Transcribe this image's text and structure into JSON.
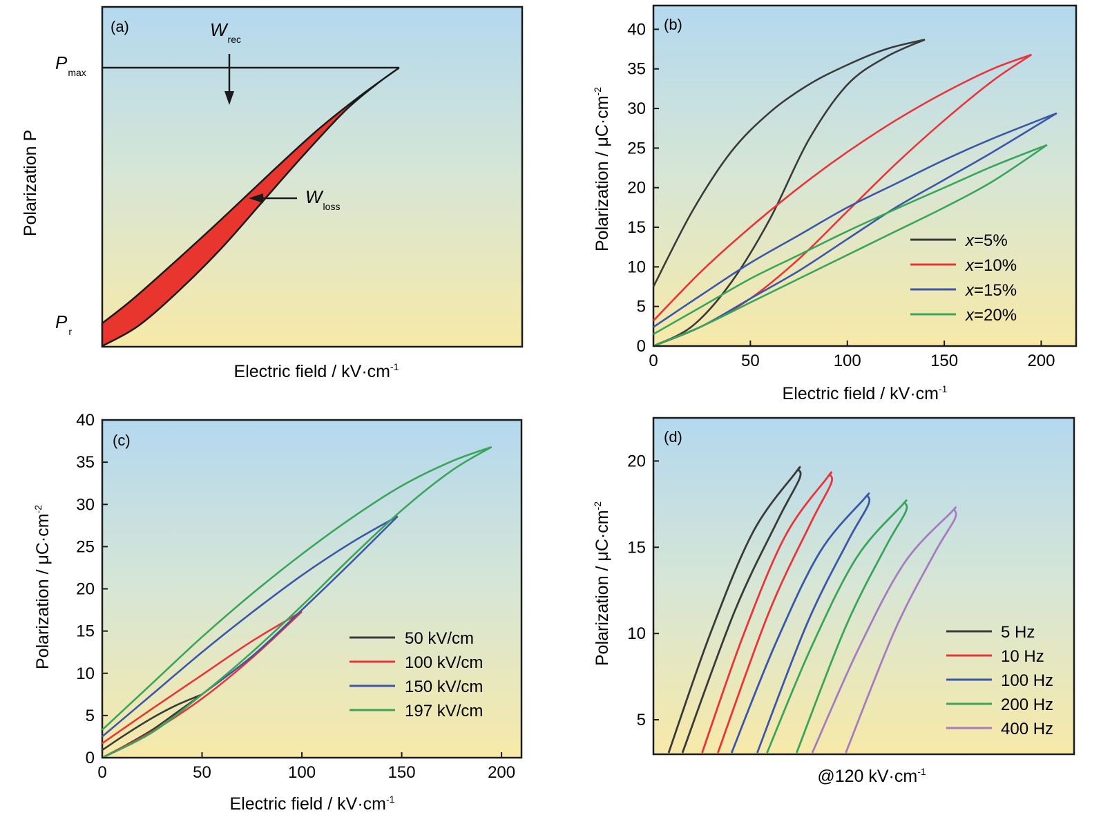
{
  "chart_data": [
    {
      "panel": "(a)",
      "type": "line",
      "xlabel": "Electric field / kV·cm",
      "xlabel_sup": "-1",
      "ylabel": "Polarization P",
      "labels": {
        "pmax_main": "P",
        "pmax_sub": "max",
        "pr_main": "P",
        "pr_sub": "r",
        "wrec_main": "W",
        "wrec_sub": "rec",
        "wloss_main": "W",
        "wloss_sub": "loss"
      },
      "colors": {
        "loss_fill": "#e8362e",
        "outline": "#1a1a1a"
      }
    },
    {
      "panel": "(b)",
      "type": "line",
      "xlabel": "Electric field / kV·cm",
      "xlabel_sup": "-1",
      "ylabel": "Polarization / μC·cm",
      "ylabel_sup": "-2",
      "xlim": [
        0,
        218
      ],
      "ylim": [
        0,
        43
      ],
      "xticks": [
        0,
        50,
        100,
        150,
        200
      ],
      "yticks": [
        0,
        5,
        10,
        15,
        20,
        25,
        30,
        35,
        40
      ],
      "legend_position": "right",
      "series": [
        {
          "name": "x=5%",
          "legend_prefix": "x",
          "legend_suffix": "=5%",
          "color": "#3a3a3a",
          "E_max": 140,
          "P_max": 38.7,
          "P_r": 7.5,
          "upper": [
            [
              0,
              7.5
            ],
            [
              20,
              17
            ],
            [
              40,
              24.5
            ],
            [
              60,
              29.5
            ],
            [
              80,
              33
            ],
            [
              100,
              35.5
            ],
            [
              120,
              37.5
            ],
            [
              140,
              38.7
            ]
          ],
          "lower": [
            [
              0,
              0
            ],
            [
              20,
              2.5
            ],
            [
              40,
              8
            ],
            [
              60,
              16
            ],
            [
              80,
              26
            ],
            [
              100,
              33
            ],
            [
              120,
              36.5
            ],
            [
              140,
              38.7
            ]
          ]
        },
        {
          "name": "x=10%",
          "legend_prefix": "x",
          "legend_suffix": "=10%",
          "color": "#e8343a",
          "E_max": 195,
          "P_max": 36.8,
          "P_r": 3.2,
          "upper": [
            [
              0,
              3.2
            ],
            [
              25,
              9.5
            ],
            [
              50,
              15
            ],
            [
              75,
              20
            ],
            [
              100,
              24.5
            ],
            [
              125,
              28.5
            ],
            [
              150,
              32
            ],
            [
              175,
              35
            ],
            [
              195,
              36.8
            ]
          ],
          "lower": [
            [
              0,
              0
            ],
            [
              25,
              2.5
            ],
            [
              50,
              6
            ],
            [
              75,
              11
            ],
            [
              100,
              17
            ],
            [
              125,
              23
            ],
            [
              150,
              28.5
            ],
            [
              175,
              33.5
            ],
            [
              195,
              36.8
            ]
          ]
        },
        {
          "name": "x=15%",
          "legend_prefix": "x",
          "legend_suffix": "=15%",
          "color": "#3a57a8",
          "E_max": 208,
          "P_max": 29.4,
          "P_r": 2.4,
          "upper": [
            [
              0,
              2.4
            ],
            [
              25,
              6.5
            ],
            [
              50,
              10.5
            ],
            [
              75,
              14
            ],
            [
              100,
              17.5
            ],
            [
              125,
              20.5
            ],
            [
              150,
              23.5
            ],
            [
              175,
              26.2
            ],
            [
              208,
              29.4
            ]
          ],
          "lower": [
            [
              0,
              0
            ],
            [
              25,
              2.5
            ],
            [
              50,
              6
            ],
            [
              75,
              9.5
            ],
            [
              100,
              13.5
            ],
            [
              125,
              17.5
            ],
            [
              150,
              21
            ],
            [
              175,
              24.5
            ],
            [
              208,
              29.4
            ]
          ]
        },
        {
          "name": "x=20%",
          "legend_prefix": "x",
          "legend_suffix": "=20%",
          "color": "#3aa55a",
          "E_max": 203,
          "P_max": 25.4,
          "P_r": 1.5,
          "upper": [
            [
              0,
              1.5
            ],
            [
              25,
              5
            ],
            [
              50,
              8.5
            ],
            [
              75,
              11.5
            ],
            [
              100,
              14.5
            ],
            [
              125,
              17.3
            ],
            [
              150,
              20
            ],
            [
              175,
              22.7
            ],
            [
              203,
              25.4
            ]
          ],
          "lower": [
            [
              0,
              0
            ],
            [
              25,
              2.5
            ],
            [
              50,
              5.5
            ],
            [
              75,
              8.5
            ],
            [
              100,
              11.5
            ],
            [
              125,
              14.5
            ],
            [
              150,
              17.5
            ],
            [
              175,
              20.8
            ],
            [
              203,
              25.4
            ]
          ]
        }
      ]
    },
    {
      "panel": "(c)",
      "type": "line",
      "xlabel": "Electric field / kV·cm",
      "xlabel_sup": "-1",
      "ylabel": "Polarization / μC·cm",
      "ylabel_sup": "-2",
      "xlim": [
        0,
        210
      ],
      "ylim": [
        0,
        40
      ],
      "xticks": [
        0,
        50,
        100,
        150,
        200
      ],
      "yticks": [
        0,
        5,
        10,
        15,
        20,
        25,
        30,
        35,
        40
      ],
      "legend_position": "right",
      "series": [
        {
          "name": "50 kV/cm",
          "color": "#3a3a3a",
          "E_max": 50,
          "P_max": 7.5,
          "P_r": 0.9,
          "upper": [
            [
              0,
              0.9
            ],
            [
              12,
              2.8
            ],
            [
              25,
              4.7
            ],
            [
              37,
              6.2
            ],
            [
              50,
              7.5
            ]
          ],
          "lower": [
            [
              0,
              0
            ],
            [
              12,
              1.5
            ],
            [
              25,
              3.3
            ],
            [
              37,
              5.3
            ],
            [
              50,
              7.5
            ]
          ]
        },
        {
          "name": "100 kV/cm",
          "color": "#e8343a",
          "E_max": 100,
          "P_max": 17.3,
          "P_r": 1.7,
          "upper": [
            [
              0,
              1.7
            ],
            [
              25,
              5.8
            ],
            [
              50,
              9.8
            ],
            [
              75,
              13.8
            ],
            [
              100,
              17.3
            ]
          ],
          "lower": [
            [
              0,
              0
            ],
            [
              25,
              3.1
            ],
            [
              50,
              7
            ],
            [
              75,
              11.8
            ],
            [
              100,
              17.3
            ]
          ]
        },
        {
          "name": "150 kV/cm",
          "color": "#3a57a8",
          "E_max": 148,
          "P_max": 28.6,
          "P_r": 2.5,
          "upper": [
            [
              0,
              2.5
            ],
            [
              25,
              7.5
            ],
            [
              50,
              12.5
            ],
            [
              75,
              17.2
            ],
            [
              100,
              21.6
            ],
            [
              125,
              25.5
            ],
            [
              148,
              28.6
            ]
          ],
          "lower": [
            [
              0,
              0
            ],
            [
              25,
              3
            ],
            [
              50,
              7.5
            ],
            [
              75,
              12
            ],
            [
              100,
              17.5
            ],
            [
              125,
              23.2
            ],
            [
              148,
              28.6
            ]
          ]
        },
        {
          "name": "197 kV/cm",
          "color": "#3aa55a",
          "E_max": 195,
          "P_max": 36.8,
          "P_r": 3.3,
          "upper": [
            [
              0,
              3.3
            ],
            [
              25,
              8.8
            ],
            [
              50,
              14.3
            ],
            [
              75,
              19.4
            ],
            [
              100,
              24.1
            ],
            [
              125,
              28.4
            ],
            [
              150,
              32.2
            ],
            [
              175,
              35.1
            ],
            [
              195,
              36.8
            ]
          ],
          "lower": [
            [
              0,
              0
            ],
            [
              25,
              3
            ],
            [
              50,
              7.5
            ],
            [
              75,
              12.5
            ],
            [
              100,
              18
            ],
            [
              125,
              23.8
            ],
            [
              150,
              29.3
            ],
            [
              175,
              34
            ],
            [
              195,
              36.8
            ]
          ]
        }
      ]
    },
    {
      "panel": "(d)",
      "type": "line",
      "xlabel": "@120 kV·cm",
      "xlabel_sup": "-1",
      "ylabel": "Polarization / μC·cm",
      "ylabel_sup": "-2",
      "ylim": [
        3,
        22.5
      ],
      "yticks": [
        5,
        10,
        15,
        20
      ],
      "legend_position": "right",
      "series": [
        {
          "name": "5 Hz",
          "color": "#3a3a3a",
          "P_max": 19.5,
          "E_offset_left_bottom": 0,
          "E_offset_right_bottom": 7,
          "E_offset_tip": 66
        },
        {
          "name": "10 Hz",
          "color": "#e8343a",
          "P_max": 19.2,
          "E_offset_left_bottom": 17,
          "E_offset_right_bottom": 25,
          "E_offset_tip": 82
        },
        {
          "name": "100 Hz",
          "color": "#3a57a8",
          "P_max": 18.0,
          "E_offset_left_bottom": 32,
          "E_offset_right_bottom": 45,
          "E_offset_tip": 101
        },
        {
          "name": "200 Hz",
          "color": "#3aa55a",
          "P_max": 17.6,
          "E_offset_left_bottom": 50,
          "E_offset_right_bottom": 65,
          "E_offset_tip": 120
        },
        {
          "name": "400 Hz",
          "color": "#a67cc0",
          "P_max": 17.2,
          "E_offset_left_bottom": 73,
          "E_offset_right_bottom": 90,
          "E_offset_tip": 145
        }
      ]
    }
  ]
}
